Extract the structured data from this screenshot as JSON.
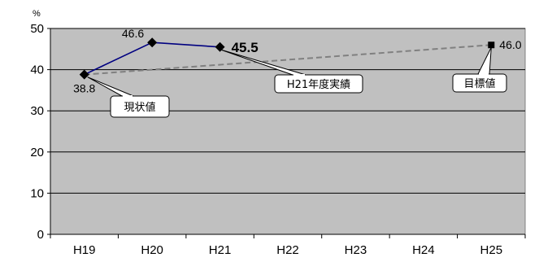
{
  "chart_data": {
    "type": "line",
    "ylabel": "%",
    "ylim": [
      0,
      50
    ],
    "yticks": [
      0,
      10,
      20,
      30,
      40,
      50
    ],
    "categories": [
      "H19",
      "H20",
      "H21",
      "H22",
      "H23",
      "H24",
      "H25"
    ],
    "grid": true,
    "plot_bg": "#c0c0c0",
    "series": [
      {
        "color": "#000080",
        "style": "solid",
        "marker": "diamond",
        "points": [
          {
            "x": "H19",
            "y": 38.8,
            "label": "38.8"
          },
          {
            "x": "H20",
            "y": 46.6,
            "label": "46.6"
          },
          {
            "x": "H21",
            "y": 45.5,
            "label": "45.5",
            "emphasis": true
          }
        ]
      },
      {
        "color": "#808080",
        "style": "dashed",
        "marker": "square",
        "points": [
          {
            "x": "H19",
            "y": 38.8,
            "label": ""
          },
          {
            "x": "H25",
            "y": 46.0,
            "label": "46.0"
          }
        ]
      }
    ],
    "annotations": [
      {
        "text": "現状値",
        "target": {
          "x": "H19",
          "y": 38.8
        }
      },
      {
        "text": "H21年度実績",
        "target": {
          "x": "H21",
          "y": 45.5
        }
      },
      {
        "text": "目標値",
        "target": {
          "x": "H25",
          "y": 46.0
        }
      }
    ]
  }
}
